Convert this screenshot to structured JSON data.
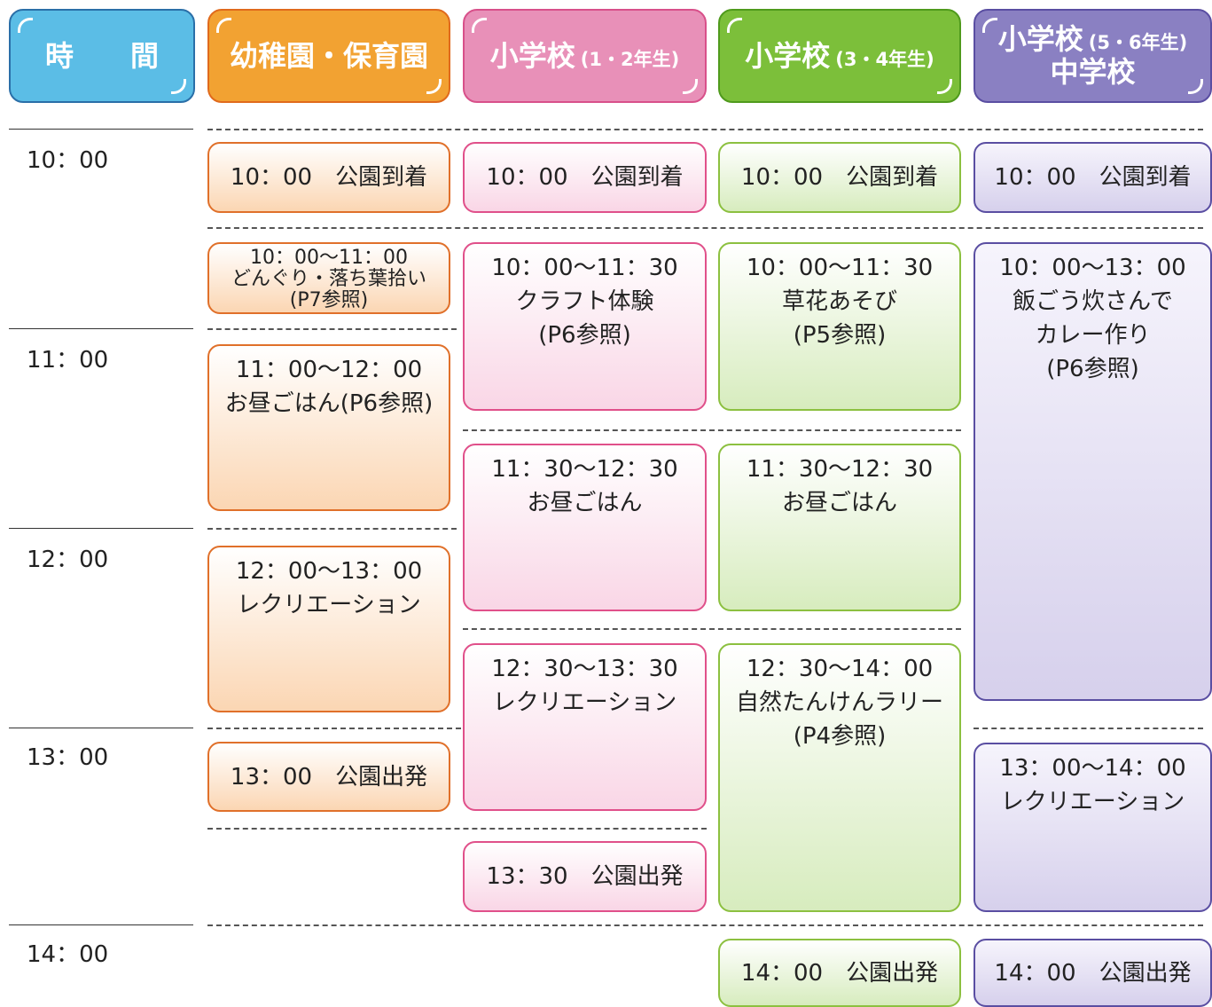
{
  "header": {
    "columns": [
      {
        "main": "時　　間"
      },
      {
        "main": "幼稚園・保育園"
      },
      {
        "main": "小学校",
        "sub": "(1・2年生)"
      },
      {
        "main": "小学校",
        "sub": "(3・4年生)"
      },
      {
        "main": "小学校",
        "sub": "(5・6年生)",
        "main2": "中学校"
      }
    ]
  },
  "times": [
    "10：00",
    "11：00",
    "12：00",
    "13：00",
    "14：00"
  ],
  "columns": [
    {
      "items": [
        {
          "lines": [
            "10：00　公園到着"
          ]
        },
        {
          "lines": [
            "10：00～11：00",
            "どんぐり・落ち葉拾い",
            "(P7参照)"
          ]
        },
        {
          "lines": [
            "11：00～12：00",
            "お昼ごはん(P6参照)"
          ]
        },
        {
          "lines": [
            "12：00～13：00",
            "レクリエーション"
          ]
        },
        {
          "lines": [
            "13：00　公園出発"
          ]
        }
      ]
    },
    {
      "items": [
        {
          "lines": [
            "10：00　公園到着"
          ]
        },
        {
          "lines": [
            "10：00～11：30",
            "クラフト体験",
            "(P6参照)"
          ]
        },
        {
          "lines": [
            "11：30～12：30",
            "お昼ごはん"
          ]
        },
        {
          "lines": [
            "12：30～13：30",
            "レクリエーション"
          ]
        },
        {
          "lines": [
            "13：30　公園出発"
          ]
        }
      ]
    },
    {
      "items": [
        {
          "lines": [
            "10：00　公園到着"
          ]
        },
        {
          "lines": [
            "10：00～11：30",
            "草花あそび",
            "(P5参照)"
          ]
        },
        {
          "lines": [
            "11：30～12：30",
            "お昼ごはん"
          ]
        },
        {
          "lines": [
            "12：30～14：00",
            "自然たんけんラリー",
            "(P4参照)"
          ]
        },
        {
          "lines": [
            "14：00　公園出発"
          ]
        }
      ]
    },
    {
      "items": [
        {
          "lines": [
            "10：00　公園到着"
          ]
        },
        {
          "lines": [
            "10：00～13：00",
            "飯ごう炊さんで",
            "カレー作り",
            "(P6参照)"
          ]
        },
        {
          "lines": [
            "13：00～14：00",
            "レクリエーション"
          ]
        },
        {
          "lines": [
            "14：00　公園出発"
          ]
        }
      ]
    }
  ]
}
